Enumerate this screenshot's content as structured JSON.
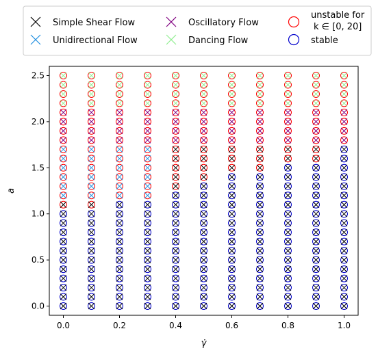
{
  "chart_data": {
    "type": "scatter",
    "title": "",
    "xlabel": "γ̇",
    "ylabel": "a",
    "xlim": [
      -0.05,
      1.05
    ],
    "ylim": [
      -0.1,
      2.6
    ],
    "xticks": [
      "0.0",
      "0.2",
      "0.4",
      "0.6",
      "0.8",
      "1.0"
    ],
    "yticks": [
      "0.0",
      "0.5",
      "1.0",
      "1.5",
      "2.0",
      "2.5"
    ],
    "grid": false,
    "legend_position": "top",
    "x_values": [
      0.0,
      0.1,
      0.2,
      0.3,
      0.4,
      0.5,
      0.6,
      0.7,
      0.8,
      0.9,
      1.0
    ],
    "a_step": 0.1,
    "a_max": 2.5,
    "unstable_threshold_a": [
      1.1,
      1.1,
      1.2,
      1.2,
      1.3,
      1.4,
      1.5,
      1.5,
      1.6,
      1.6,
      1.8
    ],
    "flow_regions": {
      "simple_shear": "x=0 for a ≤ 1.0; otherwise a below the unidirectional band",
      "unidirectional_a_range": [
        1.2,
        1.7
      ],
      "oscillatory_a_range": [
        1.8,
        2.1
      ],
      "dancing_a_range": [
        2.2,
        2.5
      ]
    },
    "series": [
      {
        "name": "Simple Shear Flow",
        "marker": "x",
        "color": "#000000"
      },
      {
        "name": "Unidirectional Flow",
        "marker": "x",
        "color": "#1f8fe0"
      },
      {
        "name": "Oscillatory Flow",
        "marker": "x",
        "color": "#800080"
      },
      {
        "name": "Dancing Flow",
        "marker": "x",
        "color": "#90ee90"
      },
      {
        "name": "unstable for",
        "name_line2": "k ∈ [0, 20]",
        "marker": "o",
        "color": "#ff0000"
      },
      {
        "name": "stable",
        "marker": "o",
        "color": "#0000cc"
      }
    ]
  }
}
